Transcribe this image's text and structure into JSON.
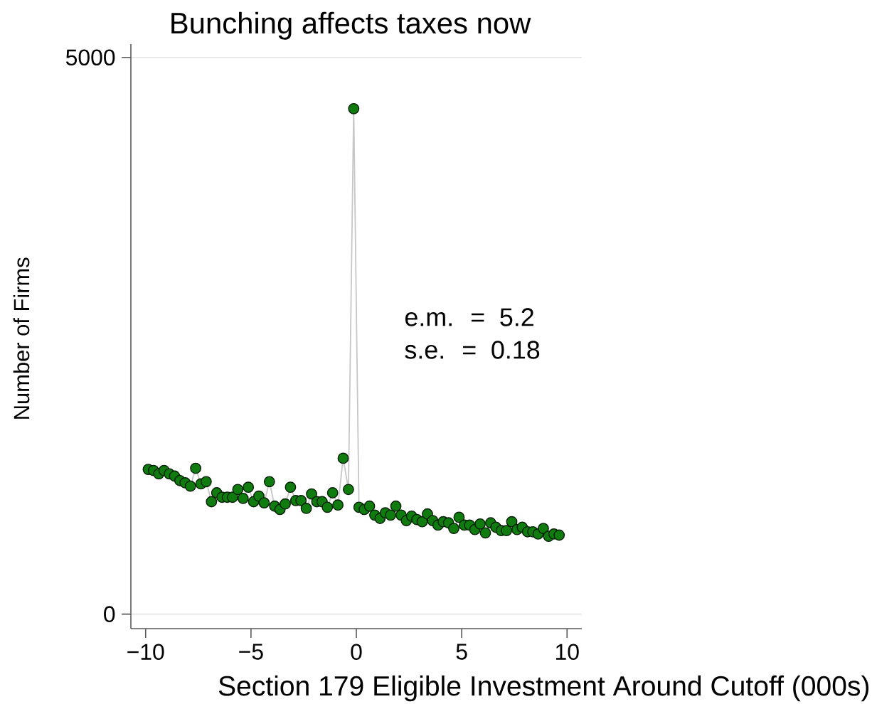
{
  "chart_data": {
    "type": "line",
    "title": "Bunching affects taxes now",
    "xlabel": "Section 179 Eligible Investment Around Cutoff (000s)",
    "ylabel": "Number of Firms",
    "annotations": [
      "e.m. = 5.2",
      "s.e. = 0.18"
    ],
    "x": [
      -9.875,
      -9.625,
      -9.375,
      -9.125,
      -8.875,
      -8.625,
      -8.375,
      -8.125,
      -7.875,
      -7.625,
      -7.375,
      -7.125,
      -6.875,
      -6.625,
      -6.375,
      -6.125,
      -5.875,
      -5.625,
      -5.375,
      -5.125,
      -4.875,
      -4.625,
      -4.375,
      -4.125,
      -3.875,
      -3.625,
      -3.375,
      -3.125,
      -2.875,
      -2.625,
      -2.375,
      -2.125,
      -1.875,
      -1.625,
      -1.375,
      -1.125,
      -0.875,
      -0.625,
      -0.375,
      -0.125,
      0.125,
      0.375,
      0.625,
      0.875,
      1.125,
      1.375,
      1.625,
      1.875,
      2.125,
      2.375,
      2.625,
      2.875,
      3.125,
      3.375,
      3.625,
      3.875,
      4.125,
      4.375,
      4.625,
      4.875,
      5.125,
      5.375,
      5.625,
      5.875,
      6.125,
      6.375,
      6.625,
      6.875,
      7.125,
      7.375,
      7.625,
      7.875,
      8.125,
      8.375,
      8.625,
      8.875,
      9.125,
      9.375,
      9.625
    ],
    "series": [
      {
        "color": "#107c10",
        "values": [
          1300,
          1290,
          1260,
          1290,
          1260,
          1240,
          1200,
          1180,
          1150,
          1310,
          1170,
          1190,
          1010,
          1090,
          1050,
          1050,
          1050,
          1120,
          1040,
          1140,
          1010,
          1060,
          1000,
          1190,
          970,
          940,
          990,
          1140,
          1020,
          1020,
          950,
          1080,
          1010,
          1010,
          960,
          1090,
          980,
          1400,
          1120,
          4540,
          960,
          940,
          970,
          890,
          860,
          910,
          890,
          970,
          890,
          840,
          880,
          850,
          830,
          900,
          840,
          800,
          830,
          820,
          770,
          870,
          800,
          800,
          760,
          810,
          730,
          820,
          780,
          750,
          750,
          830,
          760,
          780,
          740,
          740,
          720,
          770,
          700,
          720,
          710
        ]
      }
    ],
    "xlim": [
      -10.7,
      10.7
    ],
    "ylim": [
      -130,
      5120
    ],
    "xticks": [
      {
        "value": -10,
        "label": "−10"
      },
      {
        "value": -5,
        "label": "−5"
      },
      0,
      5,
      10
    ],
    "yticks": [
      0,
      5000
    ],
    "grid": "y",
    "marker": "circle"
  }
}
